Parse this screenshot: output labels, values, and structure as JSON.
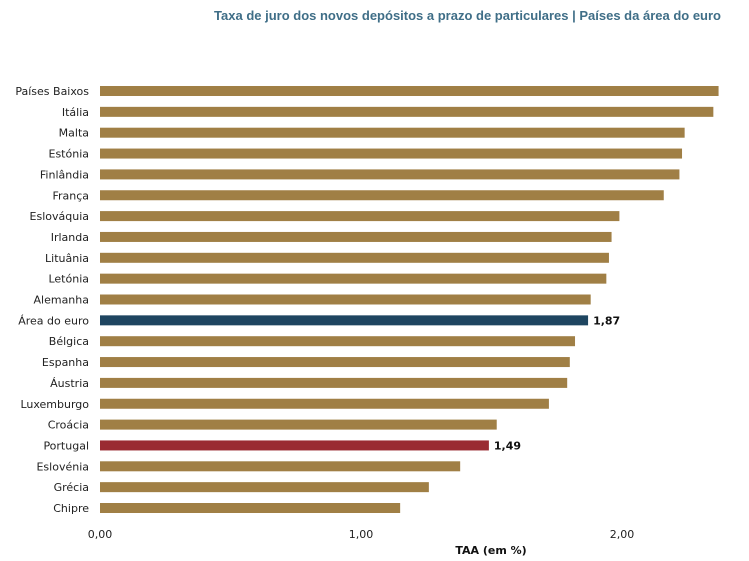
{
  "chart_data": {
    "type": "bar",
    "orientation": "horizontal",
    "title": "Taxa de juro dos novos depósitos a prazo de particulares | Países da área do euro",
    "xlabel": "TAA (em %)",
    "ylabel": "",
    "xlim": [
      0,
      2.4
    ],
    "x_ticks": [
      0,
      1,
      2
    ],
    "x_tick_labels": [
      "0,00",
      "1,00",
      "2,00"
    ],
    "grid": false,
    "legend": "none",
    "categories": [
      "Países Baixos",
      "Itália",
      "Malta",
      "Estónia",
      "Finlândia",
      "França",
      "Eslováquia",
      "Irlanda",
      "Lituânia",
      "Letónia",
      "Alemanha",
      "Área do euro",
      "Bélgica",
      "Espanha",
      "Áustria",
      "Luxemburgo",
      "Croácia",
      "Portugal",
      "Eslovénia",
      "Grécia",
      "Chipre"
    ],
    "values": [
      2.37,
      2.35,
      2.24,
      2.23,
      2.22,
      2.16,
      1.99,
      1.96,
      1.95,
      1.94,
      1.88,
      1.87,
      1.82,
      1.8,
      1.79,
      1.72,
      1.52,
      1.49,
      1.38,
      1.26,
      1.15
    ],
    "data_labels": {
      "Área do euro": "1,87",
      "Portugal": "1,49"
    },
    "colors": {
      "default": "#a07f45",
      "Área do euro": "#1e4560",
      "Portugal": "#9a2b32"
    }
  }
}
